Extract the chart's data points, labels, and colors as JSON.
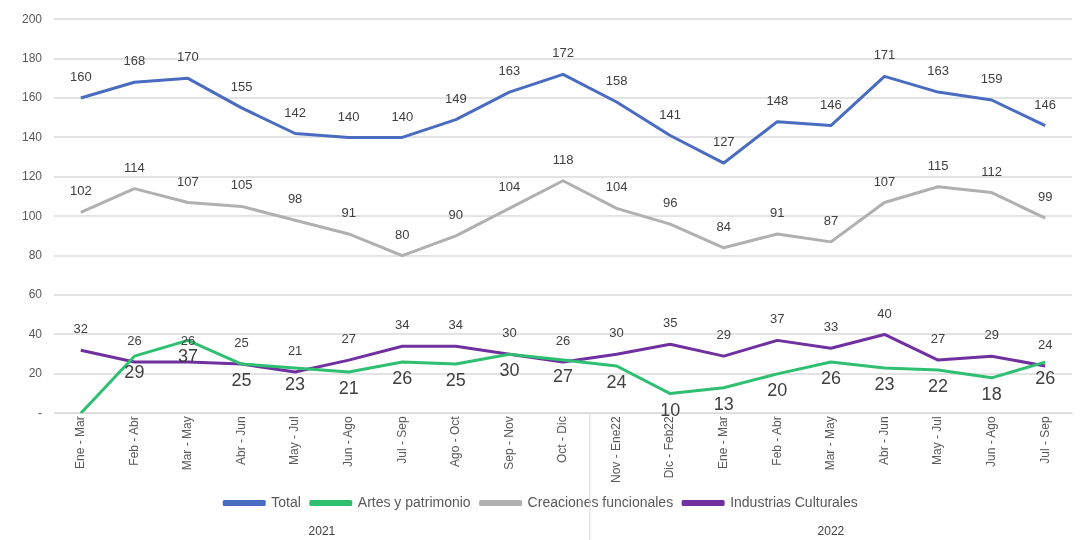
{
  "chart_data": {
    "type": "line",
    "categories": [
      "Ene - Mar",
      "Feb - Abr",
      "Mar - May",
      "Abr - Jun",
      "May - Jul",
      "Jun - Ago",
      "Jul - Sep",
      "Ago - Oct",
      "Sep - Nov",
      "Oct - Dic",
      "Nov - Ene22",
      "Dic - Feb22",
      "Ene - Mar",
      "Feb - Abr",
      "Mar - May",
      "Abr - Jun",
      "May - Jul",
      "Jun - Ago",
      "Jul - Sep"
    ],
    "series": [
      {
        "name": "Total",
        "color": "#4a6cc0",
        "values": [
          160,
          168,
          170,
          155,
          142,
          140,
          140,
          149,
          163,
          172,
          158,
          141,
          127,
          148,
          146,
          171,
          163,
          159,
          146
        ],
        "value_labels": [
          "160",
          "168",
          "170",
          "155",
          "142",
          "140",
          "140",
          "149",
          "163",
          "172",
          "158",
          "141",
          "127",
          "148",
          "146",
          "171",
          "163",
          "159",
          "146"
        ]
      },
      {
        "name": "Artes y patrimonio",
        "color": "#2fbf71",
        "values": [
          0,
          29,
          37,
          25,
          23,
          21,
          26,
          25,
          30,
          27,
          24,
          10,
          13,
          20,
          26,
          23,
          22,
          18,
          26
        ],
        "value_labels": [
          null,
          "29",
          "37",
          "25",
          "23",
          "21",
          "26",
          "25",
          "30",
          "27",
          "24",
          "10",
          "13",
          "20",
          "26",
          "23",
          "22",
          "18",
          "26"
        ]
      },
      {
        "name": "Creaciones funcionales",
        "color": "#b0b0b0",
        "values": [
          102,
          114,
          107,
          105,
          98,
          91,
          80,
          90,
          104,
          118,
          104,
          96,
          84,
          91,
          87,
          107,
          115,
          112,
          99
        ],
        "value_labels": [
          "102",
          "114",
          "107",
          "105",
          "98",
          "91",
          "80",
          "90",
          "104",
          "118",
          "104",
          "96",
          "84",
          "91",
          "87",
          "107",
          "115",
          "112",
          "99"
        ]
      },
      {
        "name": "Industrias Culturales",
        "color": "#7030a0",
        "values": [
          32,
          26,
          26,
          25,
          21,
          27,
          34,
          34,
          30,
          26,
          30,
          35,
          29,
          37,
          33,
          40,
          27,
          29,
          24
        ],
        "value_labels": [
          "32",
          "26",
          "26",
          "25",
          "21",
          "27",
          "34",
          "34",
          "30",
          "26",
          "30",
          "35",
          "29",
          "37",
          "33",
          "40",
          "27",
          "29",
          "24"
        ]
      }
    ],
    "ylim": [
      0,
      200
    ],
    "yticks": [
      {
        "value": 0,
        "label": "-"
      },
      20,
      40,
      60,
      80,
      100,
      120,
      140,
      160,
      180,
      200
    ],
    "grid": "y",
    "legend": "bottom",
    "marker": "none",
    "line_style": "solid",
    "annotations": [
      "2021",
      "2022"
    ]
  }
}
